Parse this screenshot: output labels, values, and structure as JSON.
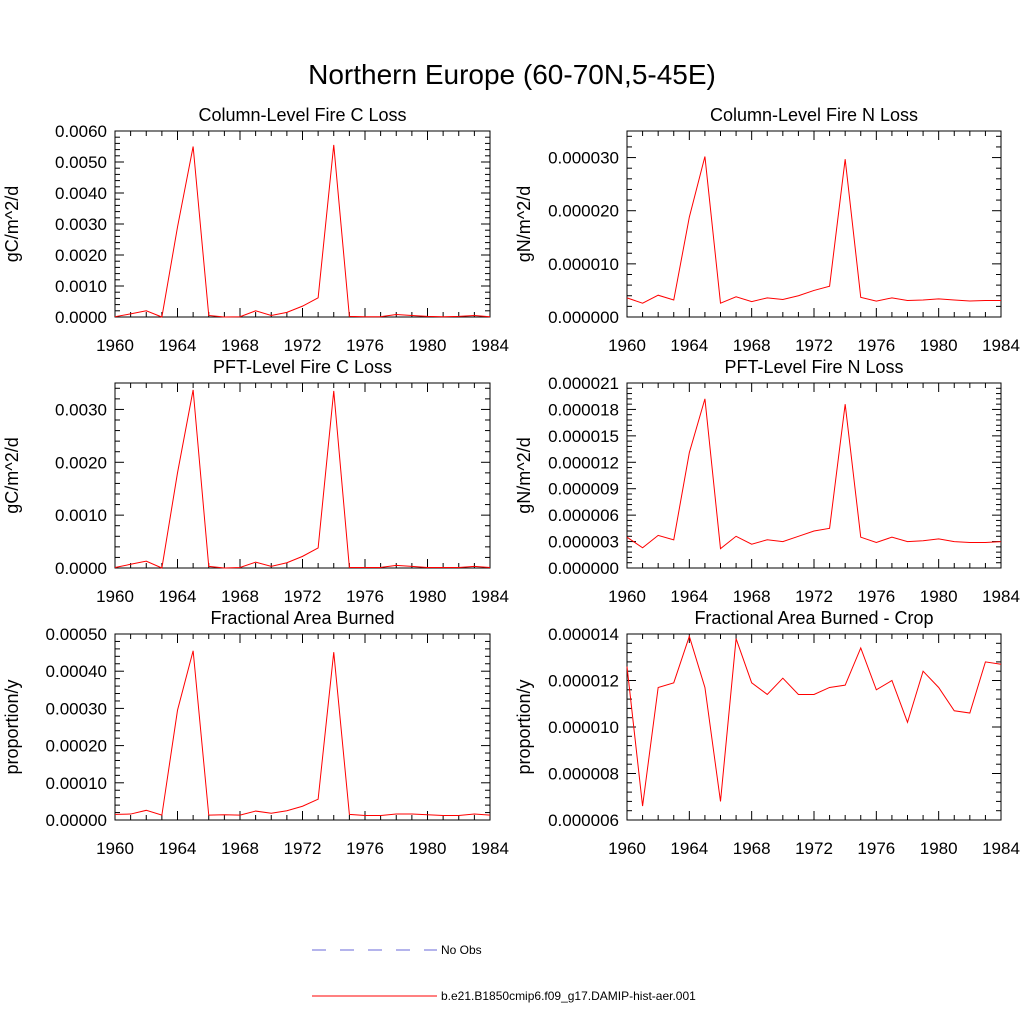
{
  "figure": {
    "title": "Northern Europe (60-70N,5-45E)"
  },
  "legend": {
    "items": [
      {
        "label": "No Obs",
        "color": "#6a6ad8",
        "dashed": true
      },
      {
        "label": "b.e21.B1850cmip6.f09_g17.DAMIP-hist-aer.001",
        "color": "#ff0000",
        "dashed": false
      }
    ]
  },
  "colors": {
    "series": "#ff0000",
    "axis": "#000000",
    "obs": "#6a6ad8"
  },
  "chart_data": [
    {
      "type": "line",
      "title": "Column-Level Fire C Loss",
      "xlabel": "",
      "ylabel": "gC/m^2/d",
      "xlim": [
        1960,
        1984
      ],
      "ylim": [
        0,
        0.006
      ],
      "xticks": [
        1960,
        1964,
        1968,
        1972,
        1976,
        1980,
        1984
      ],
      "yticks": [
        0,
        0.001,
        0.002,
        0.003,
        0.004,
        0.005,
        0.006
      ],
      "ytick_labels": [
        "0.0000",
        "0.0010",
        "0.0020",
        "0.0030",
        "0.0040",
        "0.0050",
        "0.0060"
      ],
      "x": [
        1960,
        1961,
        1962,
        1963,
        1964,
        1965,
        1966,
        1967,
        1968,
        1969,
        1970,
        1971,
        1972,
        1973,
        1974,
        1975,
        1976,
        1977,
        1978,
        1979,
        1980,
        1981,
        1982,
        1983,
        1984
      ],
      "series": [
        {
          "values": [
            1e-05,
            0.0001,
            0.0002,
            0.0,
            0.0029,
            0.0055,
            5e-05,
            0.0,
            1e-05,
            0.0002,
            5e-05,
            0.00015,
            0.00035,
            0.00062,
            0.00555,
            2e-05,
            1e-05,
            1e-05,
            8e-05,
            5e-05,
            2e-05,
            1e-05,
            2e-05,
            5e-05,
            1e-05
          ]
        }
      ]
    },
    {
      "type": "line",
      "title": "Column-Level Fire N Loss",
      "xlabel": "",
      "ylabel": "gN/m^2/d",
      "xlim": [
        1960,
        1984
      ],
      "ylim": [
        0,
        3.5e-05
      ],
      "xticks": [
        1960,
        1964,
        1968,
        1972,
        1976,
        1980,
        1984
      ],
      "yticks": [
        0,
        1e-05,
        2e-05,
        3e-05
      ],
      "ytick_labels": [
        "0.000000",
        "0.000010",
        "0.000020",
        "0.000030"
      ],
      "x": [
        1960,
        1961,
        1962,
        1963,
        1964,
        1965,
        1966,
        1967,
        1968,
        1969,
        1970,
        1971,
        1972,
        1973,
        1974,
        1975,
        1976,
        1977,
        1978,
        1979,
        1980,
        1981,
        1982,
        1983,
        1984
      ],
      "series": [
        {
          "values": [
            3.6e-06,
            2.6e-06,
            4.1e-06,
            3.2e-06,
            1.88e-05,
            3.02e-05,
            2.6e-06,
            3.8e-06,
            2.9e-06,
            3.6e-06,
            3.3e-06,
            4e-06,
            5e-06,
            5.8e-06,
            2.97e-05,
            3.7e-06,
            3e-06,
            3.6e-06,
            3.1e-06,
            3.2e-06,
            3.4e-06,
            3.2e-06,
            3e-06,
            3.1e-06,
            3.1e-06
          ]
        }
      ]
    },
    {
      "type": "line",
      "title": "PFT-Level Fire C Loss",
      "xlabel": "",
      "ylabel": "gC/m^2/d",
      "xlim": [
        1960,
        1984
      ],
      "ylim": [
        0,
        0.0035
      ],
      "xticks": [
        1960,
        1964,
        1968,
        1972,
        1976,
        1980,
        1984
      ],
      "yticks": [
        0,
        0.001,
        0.002,
        0.003
      ],
      "ytick_labels": [
        "0.0000",
        "0.0010",
        "0.0020",
        "0.0030"
      ],
      "x": [
        1960,
        1961,
        1962,
        1963,
        1964,
        1965,
        1966,
        1967,
        1968,
        1969,
        1970,
        1971,
        1972,
        1973,
        1974,
        1975,
        1976,
        1977,
        1978,
        1979,
        1980,
        1981,
        1982,
        1983,
        1984
      ],
      "series": [
        {
          "values": [
            1e-05,
            7e-05,
            0.00013,
            0.0,
            0.0018,
            0.00337,
            3e-05,
            0.0,
            1e-05,
            0.00011,
            3e-05,
            0.0001,
            0.00022,
            0.00038,
            0.00335,
            1e-05,
            1e-05,
            1e-05,
            5e-05,
            3e-05,
            1e-05,
            1e-05,
            1e-05,
            3e-05,
            1e-05
          ]
        }
      ]
    },
    {
      "type": "line",
      "title": "PFT-Level Fire N Loss",
      "xlabel": "",
      "ylabel": "gN/m^2/d",
      "xlim": [
        1960,
        1984
      ],
      "ylim": [
        0,
        2.1e-05
      ],
      "xticks": [
        1960,
        1964,
        1968,
        1972,
        1976,
        1980,
        1984
      ],
      "yticks": [
        0,
        3e-06,
        6e-06,
        9e-06,
        1.2e-05,
        1.5e-05,
        1.8e-05,
        2.1e-05
      ],
      "ytick_labels": [
        "0.000000",
        "0.000003",
        "0.000006",
        "0.000009",
        "0.000012",
        "0.000015",
        "0.000018",
        "0.000021"
      ],
      "x": [
        1960,
        1961,
        1962,
        1963,
        1964,
        1965,
        1966,
        1967,
        1968,
        1969,
        1970,
        1971,
        1972,
        1973,
        1974,
        1975,
        1976,
        1977,
        1978,
        1979,
        1980,
        1981,
        1982,
        1983,
        1984
      ],
      "series": [
        {
          "values": [
            3.5e-06,
            2.3e-06,
            3.7e-06,
            3.2e-06,
            1.31e-05,
            1.92e-05,
            2.2e-06,
            3.6e-06,
            2.7e-06,
            3.2e-06,
            3e-06,
            3.6e-06,
            4.2e-06,
            4.5e-06,
            1.86e-05,
            3.5e-06,
            2.9e-06,
            3.5e-06,
            3e-06,
            3.1e-06,
            3.3e-06,
            3e-06,
            2.9e-06,
            2.9e-06,
            3e-06
          ]
        }
      ]
    },
    {
      "type": "line",
      "title": "Fractional Area Burned",
      "xlabel": "",
      "ylabel": "proportion/y",
      "xlim": [
        1960,
        1984
      ],
      "ylim": [
        0,
        0.0005
      ],
      "xticks": [
        1960,
        1964,
        1968,
        1972,
        1976,
        1980,
        1984
      ],
      "yticks": [
        0,
        0.0001,
        0.0002,
        0.0003,
        0.0004,
        0.0005
      ],
      "ytick_labels": [
        "0.00000",
        "0.00010",
        "0.00020",
        "0.00030",
        "0.00040",
        "0.00050"
      ],
      "x": [
        1960,
        1961,
        1962,
        1963,
        1964,
        1965,
        1966,
        1967,
        1968,
        1969,
        1970,
        1971,
        1972,
        1973,
        1974,
        1975,
        1976,
        1977,
        1978,
        1979,
        1980,
        1981,
        1982,
        1983,
        1984
      ],
      "series": [
        {
          "values": [
            1.5e-05,
            1.6e-05,
            2.6e-05,
            1.3e-05,
            0.000295,
            0.000455,
            1.3e-05,
            1.4e-05,
            1.3e-05,
            2.4e-05,
            1.8e-05,
            2.5e-05,
            3.7e-05,
            5.6e-05,
            0.000451,
            1.5e-05,
            1.2e-05,
            1.2e-05,
            1.6e-05,
            1.6e-05,
            1.4e-05,
            1.2e-05,
            1.2e-05,
            1.6e-05,
            1.3e-05
          ]
        }
      ]
    },
    {
      "type": "line",
      "title": "Fractional Area Burned - Crop",
      "xlabel": "",
      "ylabel": "proportion/y",
      "xlim": [
        1960,
        1984
      ],
      "ylim": [
        6e-06,
        1.4e-05
      ],
      "xticks": [
        1960,
        1964,
        1968,
        1972,
        1976,
        1980,
        1984
      ],
      "yticks": [
        6e-06,
        8e-06,
        1e-05,
        1.2e-05,
        1.4e-05
      ],
      "ytick_labels": [
        "0.000006",
        "0.000008",
        "0.000010",
        "0.000012",
        "0.000014"
      ],
      "x": [
        1960,
        1961,
        1962,
        1963,
        1964,
        1965,
        1966,
        1967,
        1968,
        1969,
        1970,
        1971,
        1972,
        1973,
        1974,
        1975,
        1976,
        1977,
        1978,
        1979,
        1980,
        1981,
        1982,
        1983,
        1984
      ],
      "series": [
        {
          "values": [
            1.26e-05,
            6.6e-06,
            1.17e-05,
            1.19e-05,
            1.39e-05,
            1.17e-05,
            6.8e-06,
            1.38e-05,
            1.19e-05,
            1.14e-05,
            1.21e-05,
            1.14e-05,
            1.14e-05,
            1.17e-05,
            1.18e-05,
            1.34e-05,
            1.16e-05,
            1.2e-05,
            1.02e-05,
            1.24e-05,
            1.17e-05,
            1.07e-05,
            1.06e-05,
            1.28e-05,
            1.27e-05
          ]
        }
      ]
    }
  ]
}
